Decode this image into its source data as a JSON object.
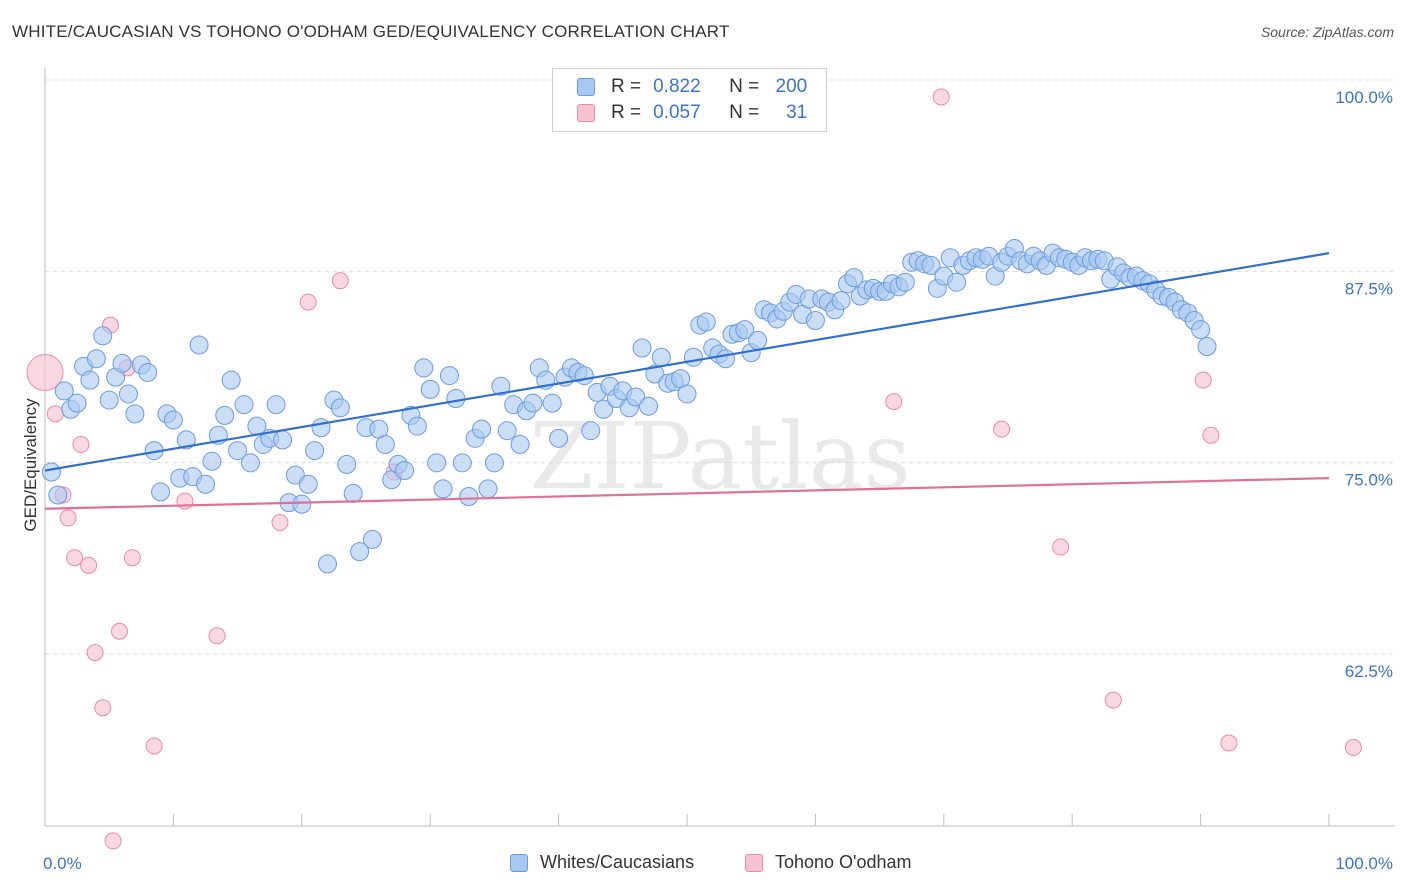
{
  "title": "WHITE/CAUCASIAN VS TOHONO O'ODHAM GED/EQUIVALENCY CORRELATION CHART",
  "source": "Source: ZipAtlas.com",
  "watermark": "ZIPatlas",
  "legend": {
    "rows": [
      {
        "r_label": "R =",
        "r_value": "0.822",
        "n_label": "N =",
        "n_value": "200"
      },
      {
        "r_label": "R =",
        "r_value": "0.057",
        "n_label": "N =",
        "n_value": "31"
      }
    ]
  },
  "colors": {
    "blue_fill": "#a9c8f0",
    "blue_edge": "#6b9be0",
    "blue_line": "#2f6fd1",
    "pink_fill": "#f6c3d3",
    "pink_edge": "#e98aab",
    "pink_line": "#e0709a",
    "tick_text": "#3a74c9",
    "grid": "#dcdcdc"
  },
  "chart_data": {
    "type": "scatter",
    "title": "WHITE/CAUCASIAN VS TOHONO O'ODHAM GED/EQUIVALENCY CORRELATION CHART",
    "xlabel": "",
    "ylabel": "GED/Equivalency",
    "xlim": [
      0,
      100
    ],
    "ylim": [
      50,
      101
    ],
    "x_tick_labels": [
      "0.0%",
      "100.0%"
    ],
    "y_ticks": [
      62.5,
      75.0,
      87.5,
      100.0
    ],
    "y_tick_labels": [
      "62.5%",
      "75.0%",
      "87.5%",
      "100.0%"
    ],
    "legend_position": "top-center",
    "series": [
      {
        "name": "Whites/Caucasians",
        "r": 0.822,
        "n": 200,
        "trend": {
          "x": [
            0,
            100
          ],
          "y": [
            75.6,
            89.8
          ]
        },
        "points": [
          [
            0.5,
            75.5
          ],
          [
            1,
            74
          ],
          [
            1.5,
            80.8
          ],
          [
            2,
            79.6
          ],
          [
            2.5,
            80
          ],
          [
            3,
            82.4
          ],
          [
            3.5,
            81.5
          ],
          [
            4,
            82.9
          ],
          [
            4.5,
            84.4
          ],
          [
            5,
            80.2
          ],
          [
            5.5,
            81.7
          ],
          [
            6,
            82.6
          ],
          [
            6.5,
            80.6
          ],
          [
            7,
            79.3
          ],
          [
            7.5,
            82.5
          ],
          [
            8,
            82
          ],
          [
            8.5,
            76.9
          ],
          [
            9,
            74.2
          ],
          [
            9.5,
            79.3
          ],
          [
            10,
            78.9
          ],
          [
            10.5,
            75.1
          ],
          [
            11,
            77.6
          ],
          [
            11.5,
            75.2
          ],
          [
            12,
            83.8
          ],
          [
            12.5,
            74.7
          ],
          [
            13,
            76.2
          ],
          [
            13.5,
            77.9
          ],
          [
            14,
            79.2
          ],
          [
            14.5,
            81.5
          ],
          [
            15,
            76.9
          ],
          [
            15.5,
            79.9
          ],
          [
            16,
            76.1
          ],
          [
            16.5,
            78.5
          ],
          [
            17,
            77.3
          ],
          [
            17.5,
            77.7
          ],
          [
            18,
            79.9
          ],
          [
            18.5,
            77.6
          ],
          [
            19,
            73.5
          ],
          [
            19.5,
            75.3
          ],
          [
            20,
            73.4
          ],
          [
            20.5,
            74.7
          ],
          [
            21,
            76.9
          ],
          [
            21.5,
            78.4
          ],
          [
            22,
            69.5
          ],
          [
            22.5,
            80.2
          ],
          [
            23,
            79.7
          ],
          [
            23.5,
            76
          ],
          [
            24,
            74.1
          ],
          [
            24.5,
            70.3
          ],
          [
            25,
            78.4
          ],
          [
            25.5,
            71.1
          ],
          [
            26,
            78.3
          ],
          [
            26.5,
            77.3
          ],
          [
            27,
            75
          ],
          [
            27.5,
            76
          ],
          [
            28,
            75.6
          ],
          [
            28.5,
            79.2
          ],
          [
            29,
            78.5
          ],
          [
            29.5,
            82.3
          ],
          [
            30,
            80.9
          ],
          [
            30.5,
            76.1
          ],
          [
            31,
            74.4
          ],
          [
            31.5,
            81.8
          ],
          [
            32,
            80.3
          ],
          [
            32.5,
            76.1
          ],
          [
            33,
            73.9
          ],
          [
            33.5,
            77.7
          ],
          [
            34,
            78.3
          ],
          [
            34.5,
            74.4
          ],
          [
            35,
            76.1
          ],
          [
            35.5,
            81.1
          ],
          [
            36,
            78.2
          ],
          [
            36.5,
            79.9
          ],
          [
            37,
            77.3
          ],
          [
            37.5,
            79.5
          ],
          [
            38,
            80
          ],
          [
            38.5,
            82.3
          ],
          [
            39,
            81.5
          ],
          [
            39.5,
            80
          ],
          [
            40,
            77.7
          ],
          [
            40.5,
            81.7
          ],
          [
            41,
            82.3
          ],
          [
            41.5,
            82
          ],
          [
            42,
            81.8
          ],
          [
            42.5,
            78.2
          ],
          [
            43,
            80.7
          ],
          [
            43.5,
            79.6
          ],
          [
            44,
            81.1
          ],
          [
            44.5,
            80.3
          ],
          [
            45,
            80.8
          ],
          [
            45.5,
            79.7
          ],
          [
            46,
            80.4
          ],
          [
            46.5,
            83.6
          ],
          [
            47,
            79.8
          ],
          [
            47.5,
            81.9
          ],
          [
            48,
            83
          ],
          [
            48.5,
            81.3
          ],
          [
            49,
            81.4
          ],
          [
            49.5,
            81.6
          ],
          [
            50,
            80.6
          ],
          [
            50.5,
            83
          ],
          [
            51,
            85.1
          ],
          [
            51.5,
            85.3
          ],
          [
            52,
            83.6
          ],
          [
            52.5,
            83.2
          ],
          [
            53,
            82.9
          ],
          [
            53.5,
            84.5
          ],
          [
            54,
            84.6
          ],
          [
            54.5,
            84.8
          ],
          [
            55,
            83.3
          ],
          [
            55.5,
            84.1
          ],
          [
            56,
            86.1
          ],
          [
            56.5,
            85.9
          ],
          [
            57,
            85.5
          ],
          [
            57.5,
            86
          ],
          [
            58,
            86.6
          ],
          [
            58.5,
            87.1
          ],
          [
            59,
            85.8
          ],
          [
            59.5,
            86.8
          ],
          [
            60,
            85.4
          ],
          [
            60.5,
            86.8
          ],
          [
            61,
            86.6
          ],
          [
            61.5,
            86.1
          ],
          [
            62,
            86.7
          ],
          [
            62.5,
            87.8
          ],
          [
            63,
            88.2
          ],
          [
            63.5,
            87
          ],
          [
            64,
            87.4
          ],
          [
            64.5,
            87.5
          ],
          [
            65,
            87.3
          ],
          [
            65.5,
            87.3
          ],
          [
            66,
            87.8
          ],
          [
            66.5,
            87.6
          ],
          [
            67,
            87.9
          ],
          [
            67.5,
            89.2
          ],
          [
            68,
            89.3
          ],
          [
            68.5,
            89.1
          ],
          [
            69,
            89
          ],
          [
            69.5,
            87.5
          ],
          [
            70,
            88.3
          ],
          [
            70.5,
            89.5
          ],
          [
            71,
            87.9
          ],
          [
            71.5,
            89
          ],
          [
            72,
            89.3
          ],
          [
            72.5,
            89.5
          ],
          [
            73,
            89.4
          ],
          [
            73.5,
            89.6
          ],
          [
            74,
            88.3
          ],
          [
            74.5,
            89.2
          ],
          [
            75,
            89.6
          ],
          [
            75.5,
            90.1
          ],
          [
            76,
            89.3
          ],
          [
            76.5,
            89.1
          ],
          [
            77,
            89.6
          ],
          [
            77.5,
            89.3
          ],
          [
            78,
            89
          ],
          [
            78.5,
            89.8
          ],
          [
            79,
            89.5
          ],
          [
            79.5,
            89.4
          ],
          [
            80,
            89.2
          ],
          [
            80.5,
            89
          ],
          [
            81,
            89.5
          ],
          [
            81.5,
            89.3
          ],
          [
            82,
            89.4
          ],
          [
            82.5,
            89.3
          ],
          [
            83,
            88.1
          ],
          [
            83.5,
            88.9
          ],
          [
            84,
            88.5
          ],
          [
            84.5,
            88.2
          ],
          [
            85,
            88.3
          ],
          [
            85.5,
            88
          ],
          [
            86,
            87.8
          ],
          [
            86.5,
            87.4
          ],
          [
            87,
            87
          ],
          [
            87.5,
            86.9
          ],
          [
            88,
            86.6
          ],
          [
            88.5,
            86.1
          ],
          [
            89,
            85.9
          ],
          [
            89.5,
            85.4
          ],
          [
            90,
            84.8
          ],
          [
            90.5,
            83.7
          ]
        ]
      },
      {
        "name": "Tohono O'odham",
        "r": 0.057,
        "n": 31,
        "trend": {
          "x": [
            0,
            100
          ],
          "y": [
            73.1,
            75.1
          ]
        },
        "points": [
          [
            0,
            82
          ],
          [
            0.8,
            79.3
          ],
          [
            1.4,
            74
          ],
          [
            1.8,
            72.5
          ],
          [
            2.3,
            69.9
          ],
          [
            2.8,
            77.3
          ],
          [
            3.4,
            69.4
          ],
          [
            3.9,
            63.7
          ],
          [
            4.5,
            60.1
          ],
          [
            5.1,
            85.1
          ],
          [
            5.3,
            51.4
          ],
          [
            5.8,
            65.1
          ],
          [
            6.4,
            82.3
          ],
          [
            6.8,
            69.9
          ],
          [
            8.5,
            57.6
          ],
          [
            10.9,
            73.6
          ],
          [
            13.4,
            64.8
          ],
          [
            18.3,
            72.2
          ],
          [
            20.5,
            86.6
          ],
          [
            23,
            88
          ],
          [
            27.2,
            75.5
          ],
          [
            66.1,
            80.1
          ],
          [
            69.8,
            100
          ],
          [
            74.5,
            78.3
          ],
          [
            79.1,
            70.6
          ],
          [
            83.2,
            60.6
          ],
          [
            90.2,
            81.5
          ],
          [
            90.8,
            77.9
          ],
          [
            92.2,
            57.8
          ],
          [
            101.9,
            57.5
          ]
        ]
      }
    ]
  },
  "bottom_legend": [
    {
      "label": "Whites/Caucasians"
    },
    {
      "label": "Tohono O'odham"
    }
  ]
}
